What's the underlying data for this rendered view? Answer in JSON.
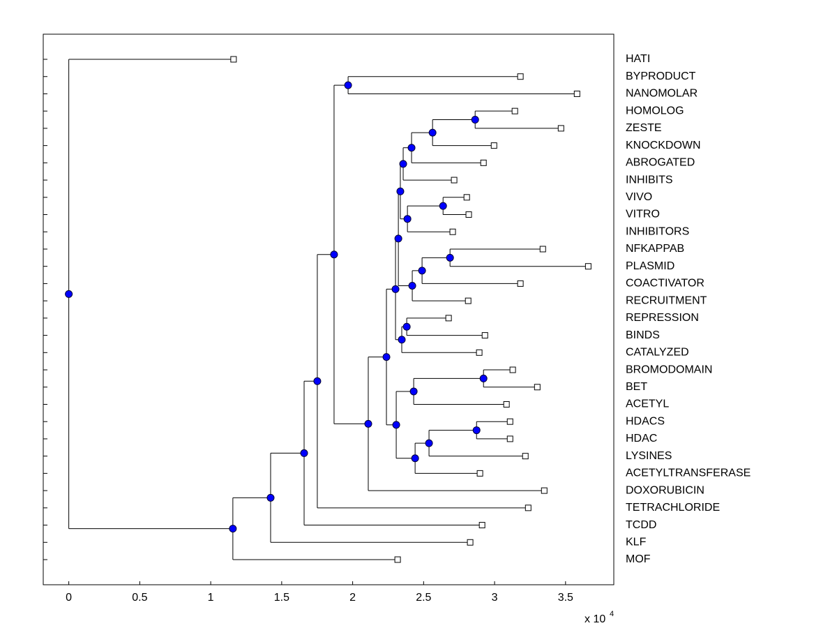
{
  "chart_data": {
    "type": "dendrogram",
    "xlim": [
      -0.18,
      3.84
    ],
    "xticks": [
      0,
      0.5,
      1,
      1.5,
      2,
      2.5,
      3,
      3.5
    ],
    "x_scale_label": "x 10",
    "x_scale_exponent": "4",
    "node_color": "#0000ff",
    "leaf_color": "#ffffff",
    "tree": {
      "x": 0,
      "children": [
        {
          "label": "HATI",
          "x": 1.161
        },
        {
          "x": 1.156,
          "children": [
            {
              "x": 1.422,
              "children": [
                {
                  "x": 1.658,
                  "children": [
                    {
                      "x": 1.751,
                      "children": [
                        {
                          "x": 1.869,
                          "children": [
                            {
                              "x": 1.968,
                              "children": [
                                {
                                  "label": "BYPRODUCT",
                                  "x": 3.182
                                },
                                {
                                  "label": "NANOMOLAR",
                                  "x": 3.581
                                }
                              ]
                            },
                            {
                              "x": 2.11,
                              "children": [
                                {
                                  "x": 2.238,
                                  "children": [
                                    {
                                      "x": 2.302,
                                      "children": [
                                        {
                                          "x": 2.322,
                                          "children": [
                                            {
                                              "x": 2.336,
                                              "children": [
                                                {
                                                  "x": 2.356,
                                                  "children": [
                                                    {
                                                      "x": 2.415,
                                                      "children": [
                                                        {
                                                          "x": 2.563,
                                                          "children": [
                                                            {
                                                              "x": 2.863,
                                                              "children": [
                                                                {
                                                                  "label": "HOMOLOG",
                                                                  "x": 3.143
                                                                },
                                                                {
                                                                  "label": "ZESTE",
                                                                  "x": 3.468
                                                                }
                                                              ]
                                                            },
                                                            {
                                                              "label": "KNOCKDOWN",
                                                              "x": 2.996
                                                            }
                                                          ]
                                                        },
                                                        {
                                                          "label": "ABROGATED",
                                                          "x": 2.922
                                                        }
                                                      ]
                                                    },
                                                    {
                                                      "label": "INHIBITS",
                                                      "x": 2.715
                                                    }
                                                  ]
                                                },
                                                {
                                                  "x": 2.386,
                                                  "children": [
                                                    {
                                                      "x": 2.637,
                                                      "children": [
                                                        {
                                                          "label": "VIVO",
                                                          "x": 2.804
                                                        },
                                                        {
                                                          "label": "VITRO",
                                                          "x": 2.818
                                                        }
                                                      ]
                                                    },
                                                    {
                                                      "label": "INHIBITORS",
                                                      "x": 2.705
                                                    }
                                                  ]
                                                }
                                              ]
                                            },
                                            {
                                              "x": 2.42,
                                              "children": [
                                                {
                                                  "x": 2.489,
                                                  "children": [
                                                    {
                                                      "x": 2.686,
                                                      "children": [
                                                        {
                                                          "label": "NFKAPPAB",
                                                          "x": 3.34
                                                        },
                                                        {
                                                          "label": "PLASMID",
                                                          "x": 3.66
                                                        }
                                                      ]
                                                    },
                                                    {
                                                      "label": "COACTIVATOR",
                                                      "x": 3.182
                                                    }
                                                  ]
                                                },
                                                {
                                                  "label": "RECRUITMENT",
                                                  "x": 2.814
                                                }
                                              ]
                                            }
                                          ]
                                        },
                                        {
                                          "x": 2.346,
                                          "children": [
                                            {
                                              "x": 2.381,
                                              "children": [
                                                {
                                                  "label": "REPRESSION",
                                                  "x": 2.676
                                                },
                                                {
                                                  "label": "BINDS",
                                                  "x": 2.932
                                                }
                                              ]
                                            },
                                            {
                                              "label": "CATALYZED",
                                              "x": 2.892
                                            }
                                          ]
                                        }
                                      ]
                                    },
                                    {
                                      "x": 2.307,
                                      "children": [
                                        {
                                          "x": 2.43,
                                          "children": [
                                            {
                                              "x": 2.922,
                                              "children": [
                                                {
                                                  "label": "BROMODOMAIN",
                                                  "x": 3.128
                                                },
                                                {
                                                  "label": "BET",
                                                  "x": 3.301
                                                }
                                              ]
                                            },
                                            {
                                              "label": "ACETYL",
                                              "x": 3.084
                                            }
                                          ]
                                        },
                                        {
                                          "x": 2.44,
                                          "children": [
                                            {
                                              "x": 2.538,
                                              "children": [
                                                {
                                                  "x": 2.873,
                                                  "children": [
                                                    {
                                                      "label": "HDACS",
                                                      "x": 3.109
                                                    },
                                                    {
                                                      "label": "HDAC",
                                                      "x": 3.109
                                                    }
                                                  ]
                                                },
                                                {
                                                  "label": "LYSINES",
                                                  "x": 3.217
                                                }
                                              ]
                                            },
                                            {
                                              "label": "ACETYLTRANSFERASE",
                                              "x": 2.897
                                            }
                                          ]
                                        }
                                      ]
                                    }
                                  ]
                                },
                                {
                                  "label": "DOXORUBICIN",
                                  "x": 3.35
                                }
                              ]
                            }
                          ]
                        },
                        {
                          "label": "TETRACHLORIDE",
                          "x": 3.237
                        }
                      ]
                    },
                    {
                      "label": "TCDD",
                      "x": 2.912
                    }
                  ]
                },
                {
                  "label": "KLF",
                  "x": 2.828
                }
              ]
            },
            {
              "label": "MOF",
              "x": 2.317
            }
          ]
        }
      ]
    }
  }
}
